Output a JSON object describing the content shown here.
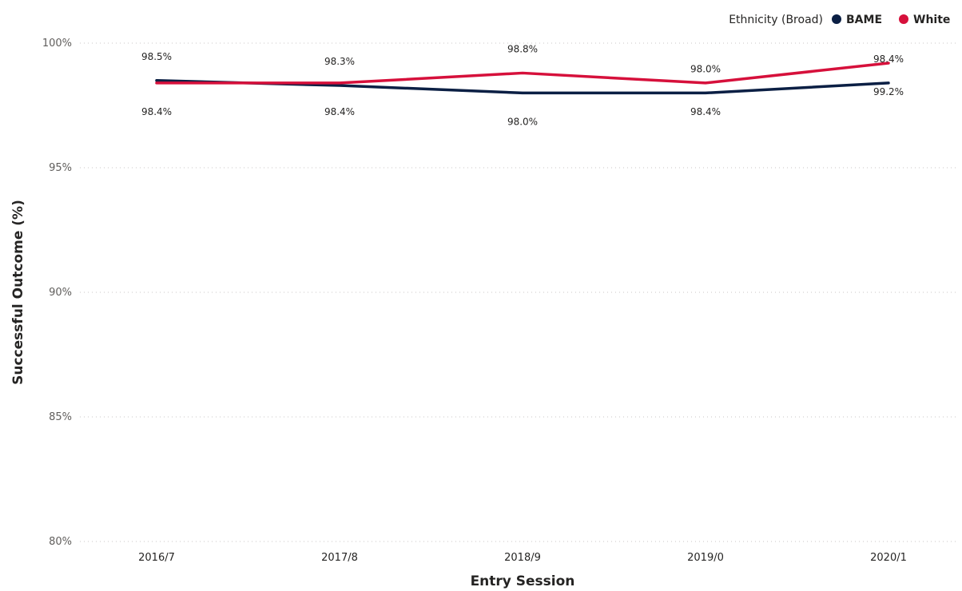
{
  "legend": {
    "title": "Ethnicity (Broad)"
  },
  "chart_data": {
    "type": "line",
    "title": "",
    "xlabel": "Entry Session",
    "ylabel": "Successful Outcome (%)",
    "categories": [
      "2016/7",
      "2017/8",
      "2018/9",
      "2019/0",
      "2020/1"
    ],
    "ylim": [
      80,
      100
    ],
    "yticks": [
      80,
      85,
      90,
      95,
      100
    ],
    "ytick_labels": [
      "80%",
      "85%",
      "90%",
      "95%",
      "100%"
    ],
    "grid": true,
    "legend_position": "top-right",
    "series": [
      {
        "name": "BAME",
        "color": "#0b1f44",
        "values": [
          98.5,
          98.3,
          98.0,
          98.0,
          98.4
        ],
        "labels": [
          "98.5%",
          "98.3%",
          "98.0%",
          "98.0%",
          "98.4%"
        ],
        "label_side": [
          "above",
          "above",
          "below",
          "above",
          "above"
        ]
      },
      {
        "name": "White",
        "color": "#d6103b",
        "values": [
          98.4,
          98.4,
          98.8,
          98.4,
          99.2
        ],
        "labels": [
          "98.4%",
          "98.4%",
          "98.8%",
          "98.4%",
          "99.2%"
        ],
        "label_side": [
          "below",
          "below",
          "above",
          "below",
          "below"
        ]
      }
    ]
  }
}
